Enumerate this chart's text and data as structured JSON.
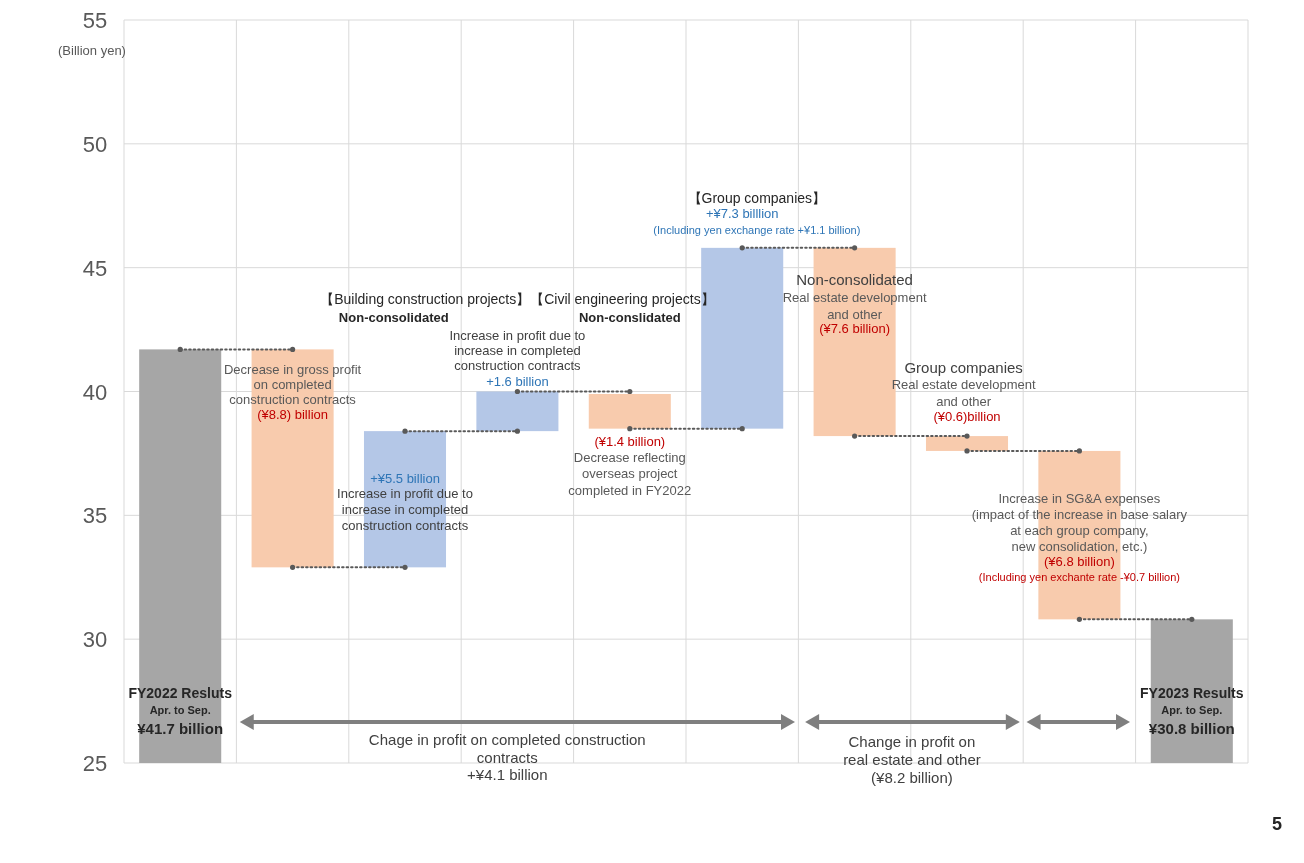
{
  "chart_data": {
    "type": "bar",
    "ylabel": "(Billion yen)",
    "categories": [
      "FY2022 Resluts",
      null,
      null,
      null,
      null,
      null,
      null,
      null,
      null,
      "FY2023 Results"
    ],
    "base": [
      0,
      41.7,
      32.9,
      38.4,
      39.9,
      38.5,
      45.8,
      38.2,
      37.6,
      0
    ],
    "values": [
      41.7,
      -8.8,
      5.5,
      1.6,
      -1.4,
      7.3,
      -7.6,
      -0.6,
      -6.8,
      30.8
    ],
    "colors": [
      "#a6a6a6",
      "#f8cbad",
      "#b4c7e7",
      "#b4c7e7",
      "#f8cbad",
      "#b4c7e7",
      "#f8cbad",
      "#f8cbad",
      "#f8cbad",
      "#a6a6a6"
    ],
    "value_labels": [
      "¥41.7 billion",
      "(¥8.8) billion",
      "+¥5.5 billion",
      "+1.6 billion",
      "(¥1.4 billion)",
      "+¥7.3 billlion",
      "(¥7.6 billion)",
      "(¥0.6)billion",
      "(¥6.8 billion)",
      "¥30.8 billion"
    ],
    "ylim": [
      25,
      55
    ],
    "yticks": [
      25,
      30,
      35,
      40,
      45,
      50,
      55
    ],
    "grid": true,
    "legend": false,
    "annotations": [
      "【Building construction projects】【Civil engineering projects】",
      "Non-consolidated",
      "Non-conslidated",
      {
        "text": "Decrease in gross profit",
        "y": 41.7
      },
      "on completed",
      "construction contracts",
      "Increase in profit due to",
      "increase in completed",
      "construction contracts",
      "Increase in profit due to",
      "increase in completed",
      {
        "text": "construction contracts",
        "y": 40
      },
      "Decrease reflecting",
      "overseas project",
      "completed in FY2022",
      "【Group companies】",
      "(Including yen exchange rate +¥1.1 billion)",
      "Non-consolidated",
      "Real estate development",
      "and other",
      "Group companies",
      "Real estate development",
      "and other",
      "Increase in SG&A expenses",
      "(impact of the increase in base salary",
      "at each group company,",
      "new consolidation, etc.)",
      "(Including yen exchante rate -¥0.7 billion)",
      "Apr. to Sep.",
      "Apr. to Sep.",
      "Chage in profit on completed construction",
      "contracts",
      "+¥4.1 billion",
      "Change in profit on",
      "real estate and other",
      "(¥8.2 billion)",
      "5"
    ]
  }
}
